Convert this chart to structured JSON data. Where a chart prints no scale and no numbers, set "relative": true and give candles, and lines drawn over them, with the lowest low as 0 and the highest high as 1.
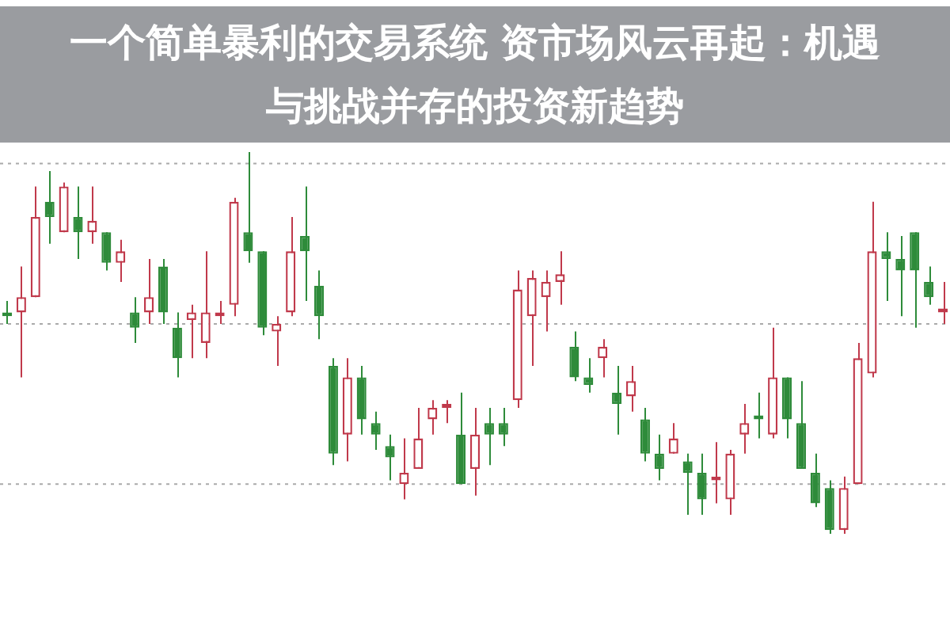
{
  "chart_data": {
    "type": "candlestick",
    "title": "一个简单暴利的交易系统 资市场风云再起：机遇与挑战并存的投资新趋势",
    "relative": true,
    "categories": [
      null,
      null,
      null,
      null,
      null,
      null,
      null,
      null,
      null,
      null,
      null,
      null,
      null,
      null,
      null,
      null,
      null,
      null,
      null,
      null,
      null,
      null,
      null,
      null,
      null,
      null,
      null,
      null,
      null,
      null,
      null,
      null,
      null,
      null,
      null,
      null,
      null,
      null,
      null,
      null,
      null,
      null,
      null,
      null,
      null,
      null,
      null,
      null,
      null,
      null,
      null,
      null,
      null,
      null,
      null,
      null,
      null,
      null,
      null,
      null,
      null,
      null,
      null,
      null,
      null,
      null,
      null
    ],
    "ohlc": [
      [
        0.58,
        0.61,
        0.55,
        0.57
      ],
      [
        0.58,
        0.7,
        0.41,
        0.62
      ],
      [
        0.62,
        0.91,
        0.62,
        0.83
      ],
      [
        0.87,
        0.95,
        0.76,
        0.83
      ],
      [
        0.79,
        0.92,
        0.79,
        0.91
      ],
      [
        0.83,
        0.91,
        0.72,
        0.79
      ],
      [
        0.79,
        0.91,
        0.76,
        0.82
      ],
      [
        0.79,
        0.79,
        0.69,
        0.71
      ],
      [
        0.71,
        0.77,
        0.66,
        0.74
      ],
      [
        0.58,
        0.62,
        0.5,
        0.54
      ],
      [
        0.58,
        0.72,
        0.55,
        0.62
      ],
      [
        0.7,
        0.72,
        0.55,
        0.58
      ],
      [
        0.54,
        0.58,
        0.41,
        0.46
      ],
      [
        0.56,
        0.6,
        0.46,
        0.58
      ],
      [
        0.5,
        0.74,
        0.46,
        0.58
      ],
      [
        0.57,
        0.61,
        0.55,
        0.58
      ],
      [
        0.6,
        0.88,
        0.57,
        0.87
      ],
      [
        0.79,
        1.0,
        0.71,
        0.74
      ],
      [
        0.74,
        0.74,
        0.52,
        0.54
      ],
      [
        0.53,
        0.57,
        0.44,
        0.55
      ],
      [
        0.58,
        0.83,
        0.57,
        0.74
      ],
      [
        0.78,
        0.91,
        0.61,
        0.74
      ],
      [
        0.65,
        0.69,
        0.51,
        0.57
      ],
      [
        0.44,
        0.46,
        0.18,
        0.21
      ],
      [
        0.26,
        0.46,
        0.19,
        0.41
      ],
      [
        0.41,
        0.44,
        0.26,
        0.3
      ],
      [
        0.29,
        0.32,
        0.22,
        0.26
      ],
      [
        0.23,
        0.26,
        0.14,
        0.2
      ],
      [
        0.13,
        0.25,
        0.09,
        0.16
      ],
      [
        0.17,
        0.33,
        0.17,
        0.25
      ],
      [
        0.3,
        0.35,
        0.26,
        0.33
      ],
      [
        0.33,
        0.35,
        0.29,
        0.34
      ],
      [
        0.26,
        0.37,
        0.13,
        0.13
      ],
      [
        0.17,
        0.33,
        0.1,
        0.26
      ],
      [
        0.29,
        0.33,
        0.18,
        0.26
      ],
      [
        0.29,
        0.33,
        0.23,
        0.26
      ],
      [
        0.35,
        0.69,
        0.33,
        0.64
      ],
      [
        0.57,
        0.69,
        0.44,
        0.67
      ],
      [
        0.62,
        0.69,
        0.53,
        0.66
      ],
      [
        0.66,
        0.74,
        0.6,
        0.68
      ],
      [
        0.49,
        0.53,
        0.4,
        0.41
      ],
      [
        0.41,
        0.46,
        0.37,
        0.39
      ],
      [
        0.46,
        0.51,
        0.41,
        0.49
      ],
      [
        0.37,
        0.44,
        0.26,
        0.34
      ],
      [
        0.36,
        0.44,
        0.32,
        0.4
      ],
      [
        0.3,
        0.33,
        0.19,
        0.21
      ],
      [
        0.21,
        0.26,
        0.14,
        0.17
      ],
      [
        0.21,
        0.29,
        0.21,
        0.25
      ],
      [
        0.19,
        0.21,
        0.05,
        0.16
      ],
      [
        0.16,
        0.21,
        0.05,
        0.09
      ],
      [
        0.14,
        0.24,
        0.08,
        0.15
      ],
      [
        0.09,
        0.22,
        0.05,
        0.21
      ],
      [
        0.26,
        0.34,
        0.21,
        0.29
      ],
      [
        0.31,
        0.37,
        0.25,
        0.3
      ],
      [
        0.26,
        0.54,
        0.25,
        0.41
      ],
      [
        0.41,
        0.41,
        0.25,
        0.3
      ],
      [
        0.29,
        0.4,
        0.17,
        0.17
      ],
      [
        0.16,
        0.21,
        0.07,
        0.08
      ],
      [
        0.12,
        0.14,
        0.0,
        0.01
      ],
      [
        0.01,
        0.15,
        0.0,
        0.12
      ],
      [
        0.13,
        0.5,
        0.13,
        0.46
      ],
      [
        0.42,
        0.87,
        0.41,
        0.74
      ],
      [
        0.74,
        0.79,
        0.61,
        0.72
      ],
      [
        0.72,
        0.78,
        0.57,
        0.69
      ],
      [
        0.79,
        0.79,
        0.54,
        0.69
      ],
      [
        0.66,
        0.7,
        0.6,
        0.62
      ],
      [
        0.58,
        0.66,
        0.55,
        0.59
      ]
    ],
    "colors": [
      "#2e8b3a",
      "#c0394b",
      "#c0394b",
      "#2e8b3a",
      "#c0394b",
      "#2e8b3a",
      "#c0394b",
      "#2e8b3a",
      "#c0394b",
      "#2e8b3a",
      "#c0394b",
      "#2e8b3a",
      "#2e8b3a",
      "#c0394b",
      "#c0394b",
      "#c0394b",
      "#c0394b",
      "#2e8b3a",
      "#2e8b3a",
      "#c0394b",
      "#c0394b",
      "#2e8b3a",
      "#2e8b3a",
      "#2e8b3a",
      "#c0394b",
      "#2e8b3a",
      "#2e8b3a",
      "#2e8b3a",
      "#c0394b",
      "#c0394b",
      "#c0394b",
      "#c0394b",
      "#2e8b3a",
      "#c0394b",
      "#2e8b3a",
      "#2e8b3a",
      "#c0394b",
      "#c0394b",
      "#c0394b",
      "#c0394b",
      "#2e8b3a",
      "#2e8b3a",
      "#c0394b",
      "#2e8b3a",
      "#c0394b",
      "#2e8b3a",
      "#2e8b3a",
      "#c0394b",
      "#2e8b3a",
      "#2e8b3a",
      "#c0394b",
      "#c0394b",
      "#c0394b",
      "#2e8b3a",
      "#c0394b",
      "#2e8b3a",
      "#2e8b3a",
      "#2e8b3a",
      "#2e8b3a",
      "#c0394b",
      "#c0394b",
      "#c0394b",
      "#2e8b3a",
      "#2e8b3a",
      "#2e8b3a",
      "#2e8b3a",
      "#c0394b"
    ],
    "ref_lines": [
      {
        "axis": "y",
        "value": 0.97,
        "color": "#aaaaaa",
        "line_style": "dotted"
      },
      {
        "axis": "y",
        "value": 0.55,
        "color": "#aaaaaa",
        "line_style": "dotted"
      },
      {
        "axis": "y",
        "value": 0.13,
        "color": "#aaaaaa",
        "line_style": "dotted"
      }
    ],
    "legend": false
  }
}
